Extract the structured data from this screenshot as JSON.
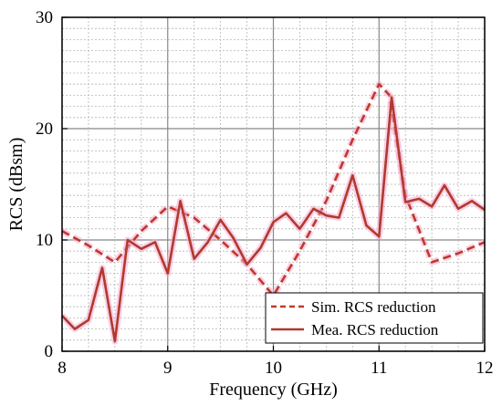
{
  "chart_data": {
    "type": "line",
    "title": "",
    "xlabel": "Frequency (GHz)",
    "ylabel": "RCS (dBsm)",
    "xlim": [
      8,
      12
    ],
    "ylim": [
      0,
      30
    ],
    "xticks": [
      8,
      9,
      10,
      11,
      12
    ],
    "yticks": [
      0,
      10,
      20,
      30
    ],
    "x_tick_labels": [
      "8",
      "9",
      "10",
      "11",
      "12"
    ],
    "y_tick_labels": [
      "0",
      "10",
      "20",
      "30"
    ],
    "grid": true,
    "legend_position": "bottom-right",
    "series": [
      {
        "name": "Sim. RCS reduction",
        "style": "dashed",
        "color": "#c0392b",
        "x": [
          8.0,
          8.25,
          8.5,
          8.75,
          9.0,
          9.25,
          9.5,
          9.75,
          10.0,
          10.25,
          10.5,
          10.75,
          11.0,
          11.1,
          11.25,
          11.5,
          11.75,
          12.0
        ],
        "y": [
          10.8,
          9.5,
          8.0,
          10.8,
          13.0,
          12.0,
          10.0,
          7.8,
          5.0,
          9.0,
          13.5,
          19.0,
          24.0,
          23.0,
          14.0,
          8.0,
          8.8,
          9.8
        ]
      },
      {
        "name": "Mea. RCS reduction",
        "style": "solid",
        "color": "#b03a2e",
        "x": [
          8.0,
          8.12,
          8.25,
          8.38,
          8.5,
          8.62,
          8.75,
          8.88,
          9.0,
          9.12,
          9.25,
          9.38,
          9.5,
          9.62,
          9.75,
          9.88,
          10.0,
          10.12,
          10.25,
          10.38,
          10.5,
          10.62,
          10.75,
          10.88,
          11.0,
          11.12,
          11.25,
          11.38,
          11.5,
          11.62,
          11.75,
          11.88,
          12.0
        ],
        "y": [
          3.2,
          2.0,
          2.8,
          7.5,
          0.9,
          10.0,
          9.2,
          9.8,
          7.0,
          13.5,
          8.3,
          9.8,
          11.8,
          10.2,
          7.8,
          9.3,
          11.6,
          12.4,
          11.0,
          12.8,
          12.2,
          12.0,
          15.8,
          11.3,
          10.3,
          22.8,
          13.4,
          13.7,
          13.0,
          14.9,
          12.8,
          13.5,
          12.7
        ]
      }
    ]
  },
  "colors": {
    "dashed_series": "#c0392b",
    "solid_series": "#b03a2e",
    "glow": "#f5a9d0",
    "grid": "#b5b5b5"
  }
}
